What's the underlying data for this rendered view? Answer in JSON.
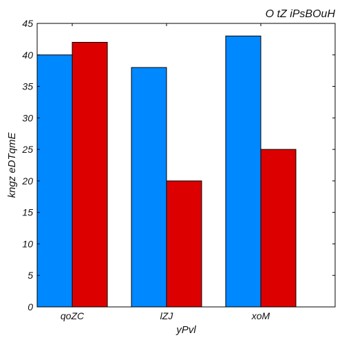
{
  "chart_data": {
    "type": "bar",
    "title": "O tZ iPsBOuH",
    "xlabel": "yPvl",
    "ylabel": "kngz eDTqmE",
    "categories": [
      "qoZC",
      "lZJ",
      "xoM"
    ],
    "series": [
      {
        "values": [
          40,
          38,
          43
        ],
        "color": "#0088ff"
      },
      {
        "values": [
          42,
          20,
          25
        ],
        "color": "#dd0000"
      }
    ],
    "ylim": [
      0,
      45
    ],
    "yticks": [
      0,
      5,
      10,
      15,
      20,
      25,
      30,
      35,
      40,
      45
    ],
    "grid": false,
    "legend": "none"
  }
}
